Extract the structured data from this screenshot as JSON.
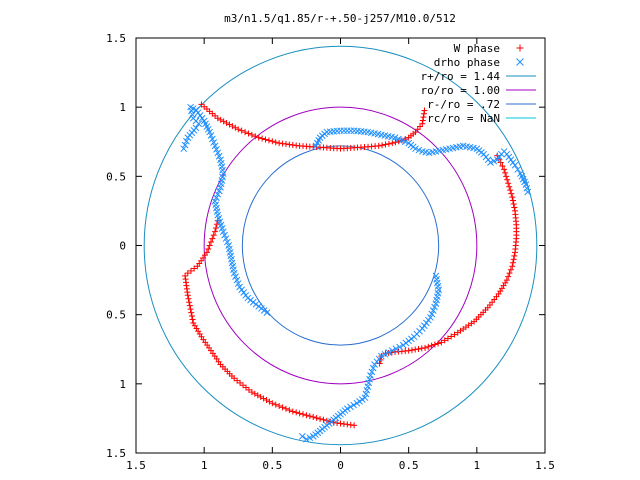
{
  "chart_data": {
    "type": "scatter",
    "title": "m3/n1.5/q1.85/r-+.50-j257/M10.0/512",
    "xlabel": "",
    "ylabel": "",
    "xlim": [
      -1.5,
      1.5
    ],
    "ylim": [
      -1.5,
      1.5
    ],
    "x_tick_values": [
      -1.5,
      -1,
      -0.5,
      0,
      0.5,
      1,
      1.5
    ],
    "x_tick_labels": [
      "1.5",
      "1",
      "0.5",
      "0",
      "0.5",
      "1",
      "1.5"
    ],
    "y_tick_values": [
      -1.5,
      -1,
      -0.5,
      0,
      0.5,
      1,
      1.5
    ],
    "y_tick_labels": [
      "1.5",
      "1",
      "0.5",
      "0",
      "0.5",
      "1",
      "1.5"
    ],
    "grid": false,
    "legend_position": "top-right",
    "legend": [
      {
        "label": "W phase",
        "marker": "plus",
        "color": "#ff0000"
      },
      {
        "label": "drho phase",
        "marker": "cross",
        "color": "#1f8fff"
      },
      {
        "label": "r+/ro = 1.44",
        "marker": "line",
        "color": "#1a8fc0"
      },
      {
        "label": "ro/ro = 1.00",
        "marker": "line",
        "color": "#a000c0"
      },
      {
        "label": "r-/ro = .72",
        "marker": "line",
        "color": "#2a6fd0"
      },
      {
        "label": "rc/ro = NaN",
        "marker": "line",
        "color": "#00c8d8"
      }
    ],
    "circles": [
      {
        "name": "r+/ro = 1.44",
        "radius": 1.44,
        "color": "#1a8fc0"
      },
      {
        "name": "ro/ro = 1.00",
        "radius": 1.0,
        "color": "#a000c0"
      },
      {
        "name": "r-/ro = .72",
        "radius": 0.72,
        "color": "#2a6fd0"
      }
    ],
    "series": [
      {
        "name": "W phase",
        "color": "#ff0000",
        "segments": [
          {
            "x": [
              -1.02,
              -0.9,
              -0.75,
              -0.6,
              -0.45,
              -0.3,
              -0.15,
              0.0,
              0.15,
              0.28,
              0.38,
              0.45,
              0.5,
              0.55,
              0.6,
              0.62
            ],
            "y": [
              1.02,
              0.92,
              0.84,
              0.78,
              0.74,
              0.72,
              0.71,
              0.7,
              0.71,
              0.72,
              0.74,
              0.76,
              0.78,
              0.82,
              0.88,
              1.0
            ]
          },
          {
            "x": [
              1.15,
              1.2,
              1.23,
              1.26,
              1.28,
              1.29,
              1.29,
              1.28,
              1.26,
              1.22,
              1.16,
              1.08,
              0.98,
              0.86,
              0.74,
              0.62,
              0.5,
              0.4,
              0.33,
              0.3,
              0.28
            ],
            "y": [
              0.65,
              0.55,
              0.45,
              0.35,
              0.25,
              0.15,
              0.05,
              -0.05,
              -0.15,
              -0.25,
              -0.35,
              -0.45,
              -0.55,
              -0.63,
              -0.7,
              -0.74,
              -0.76,
              -0.77,
              -0.78,
              -0.8,
              -0.88
            ]
          },
          {
            "x": [
              0.1,
              -0.05,
              -0.2,
              -0.35,
              -0.5,
              -0.65,
              -0.78,
              -0.88,
              -0.95,
              -1.02,
              -1.08,
              -1.1,
              -1.12,
              -1.14,
              -1.12,
              -1.05,
              -0.98,
              -0.92,
              -0.9,
              -0.92
            ],
            "y": [
              -1.3,
              -1.28,
              -1.24,
              -1.2,
              -1.14,
              -1.06,
              -0.96,
              -0.86,
              -0.76,
              -0.66,
              -0.56,
              -0.46,
              -0.36,
              -0.22,
              -0.2,
              -0.15,
              -0.05,
              0.1,
              0.18,
              0.15
            ]
          }
        ]
      },
      {
        "name": "drho phase",
        "color": "#1f8fff",
        "segments": [
          {
            "x": [
              -1.15,
              -1.12,
              -1.06,
              -1.04,
              -1.08,
              -1.1,
              -1.06,
              -1.0,
              -0.96,
              -0.92,
              -0.88,
              -0.86,
              -0.88,
              -0.92,
              -0.9,
              -0.86,
              -0.82,
              -0.8,
              -0.78,
              -0.74,
              -0.68,
              -0.6,
              -0.52
            ],
            "y": [
              0.7,
              0.78,
              0.85,
              0.88,
              0.92,
              1.0,
              0.98,
              0.9,
              0.82,
              0.72,
              0.62,
              0.52,
              0.42,
              0.32,
              0.22,
              0.1,
              0.0,
              -0.1,
              -0.2,
              -0.3,
              -0.38,
              -0.44,
              -0.5
            ]
          },
          {
            "x": [
              -0.18,
              -0.15,
              -0.1,
              0.0,
              0.1,
              0.2,
              0.3,
              0.4,
              0.5,
              0.55,
              0.6,
              0.65,
              0.7,
              0.8,
              0.9,
              1.0,
              1.05,
              1.1,
              1.15,
              1.18,
              1.2,
              1.22,
              1.25,
              1.28,
              1.3,
              1.32,
              1.34,
              1.36,
              1.38
            ],
            "y": [
              0.72,
              0.78,
              0.82,
              0.83,
              0.83,
              0.82,
              0.8,
              0.78,
              0.74,
              0.7,
              0.68,
              0.67,
              0.68,
              0.7,
              0.72,
              0.7,
              0.66,
              0.6,
              0.62,
              0.66,
              0.68,
              0.66,
              0.62,
              0.58,
              0.55,
              0.52,
              0.48,
              0.44,
              0.36
            ]
          },
          {
            "x": [
              0.7,
              0.72,
              0.7,
              0.66,
              0.6,
              0.54,
              0.46,
              0.38,
              0.3,
              0.25,
              0.22,
              0.2,
              0.18,
              0.12,
              0.05,
              0.0,
              -0.05,
              -0.1,
              -0.15,
              -0.2,
              -0.25,
              -0.28,
              -0.3
            ],
            "y": [
              -0.22,
              -0.32,
              -0.42,
              -0.52,
              -0.6,
              -0.66,
              -0.72,
              -0.76,
              -0.8,
              -0.86,
              -0.94,
              -1.02,
              -1.1,
              -1.14,
              -1.18,
              -1.22,
              -1.26,
              -1.3,
              -1.34,
              -1.38,
              -1.4,
              -1.38,
              -1.36
            ]
          }
        ]
      }
    ]
  }
}
